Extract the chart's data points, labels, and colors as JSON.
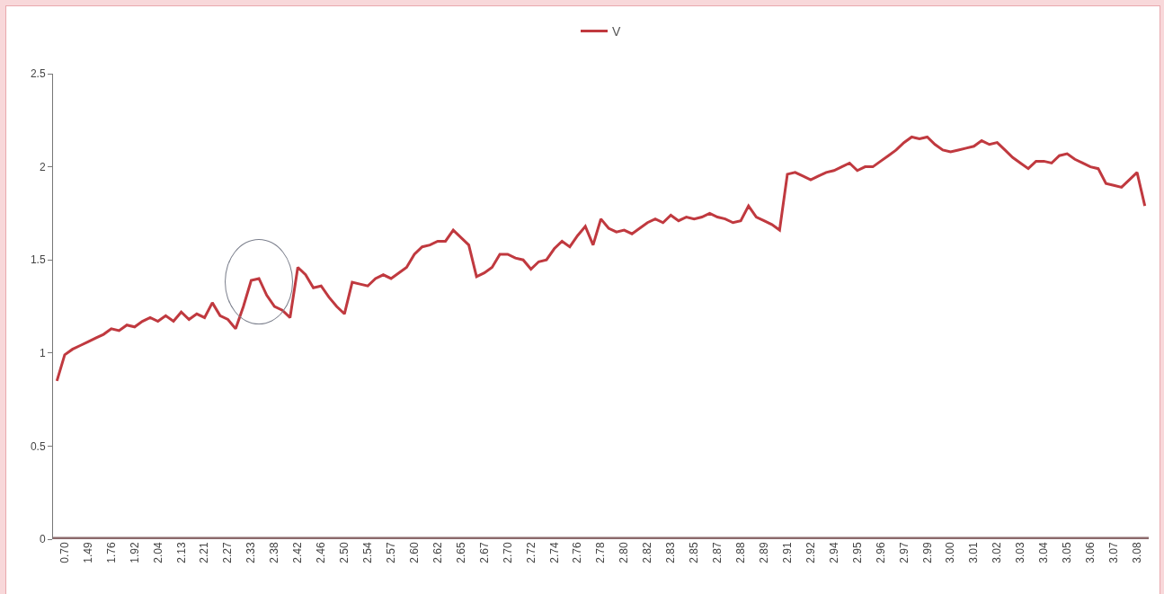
{
  "chart_data": {
    "type": "line",
    "categories": [
      null,
      "0.70",
      null,
      null,
      "1.49",
      null,
      null,
      "1.76",
      null,
      null,
      "1.92",
      null,
      null,
      "2.04",
      null,
      null,
      "2.13",
      null,
      null,
      "2.21",
      null,
      null,
      "2.27",
      null,
      null,
      "2.33",
      null,
      null,
      "2.38",
      null,
      null,
      "2.42",
      null,
      null,
      "2.46",
      null,
      null,
      "2.50",
      null,
      null,
      "2.54",
      null,
      null,
      "2.57",
      null,
      null,
      "2.60",
      null,
      null,
      "2.62",
      null,
      null,
      "2.65",
      null,
      null,
      "2.67",
      null,
      null,
      "2.70",
      null,
      null,
      "2.72",
      null,
      null,
      "2.74",
      null,
      null,
      "2.76",
      null,
      null,
      "2.78",
      null,
      null,
      "2.80",
      null,
      null,
      "2.82",
      null,
      null,
      "2.83",
      null,
      null,
      "2.85",
      null,
      null,
      "2.87",
      null,
      null,
      "2.88",
      null,
      null,
      "2.89",
      null,
      null,
      "2.91",
      null,
      null,
      "2.92",
      null,
      null,
      "2.94",
      null,
      null,
      "2.95",
      null,
      null,
      "2.96",
      null,
      null,
      "2.97",
      null,
      null,
      "2.99",
      null,
      null,
      "3.00",
      null,
      null,
      "3.01",
      null,
      null,
      "3.02",
      null,
      null,
      "3.03",
      null,
      null,
      "3.04",
      null,
      null,
      "3.05",
      null,
      null,
      "3.06",
      null,
      null,
      "3.07",
      null,
      null,
      "3.08",
      null
    ],
    "series": [
      {
        "name": "V",
        "color": "#c0393f",
        "values": [
          0.85,
          0.99,
          1.02,
          1.04,
          1.06,
          1.08,
          1.1,
          1.13,
          1.12,
          1.15,
          1.14,
          1.17,
          1.19,
          1.17,
          1.2,
          1.17,
          1.22,
          1.18,
          1.21,
          1.19,
          1.27,
          1.2,
          1.18,
          1.13,
          1.25,
          1.39,
          1.4,
          1.31,
          1.25,
          1.23,
          1.19,
          1.46,
          1.42,
          1.35,
          1.36,
          1.3,
          1.25,
          1.21,
          1.38,
          1.37,
          1.36,
          1.4,
          1.42,
          1.4,
          1.43,
          1.46,
          1.53,
          1.57,
          1.58,
          1.6,
          1.6,
          1.66,
          1.62,
          1.58,
          1.41,
          1.43,
          1.46,
          1.53,
          1.53,
          1.51,
          1.5,
          1.45,
          1.49,
          1.5,
          1.56,
          1.6,
          1.57,
          1.63,
          1.68,
          1.58,
          1.72,
          1.67,
          1.65,
          1.66,
          1.64,
          1.67,
          1.7,
          1.72,
          1.7,
          1.74,
          1.71,
          1.73,
          1.72,
          1.73,
          1.75,
          1.73,
          1.72,
          1.7,
          1.71,
          1.79,
          1.73,
          1.71,
          1.69,
          1.66,
          1.96,
          1.97,
          1.95,
          1.93,
          1.95,
          1.97,
          1.98,
          2.0,
          2.02,
          1.98,
          2.0,
          2.0,
          2.03,
          2.06,
          2.09,
          2.13,
          2.16,
          2.15,
          2.16,
          2.12,
          2.09,
          2.08,
          2.09,
          2.1,
          2.11,
          2.14,
          2.12,
          2.13,
          2.09,
          2.05,
          2.02,
          1.99,
          2.03,
          2.03,
          2.02,
          2.06,
          2.07,
          2.04,
          2.02,
          2.0,
          1.99,
          1.91,
          1.9,
          1.89,
          1.93,
          1.97,
          1.79
        ]
      }
    ],
    "ylim": [
      0,
      2.5
    ],
    "yticks": [
      0,
      0.5,
      1,
      1.5,
      2,
      2.5
    ],
    "grid": false,
    "legend": "top",
    "marker": "none",
    "line_style": "solid"
  }
}
